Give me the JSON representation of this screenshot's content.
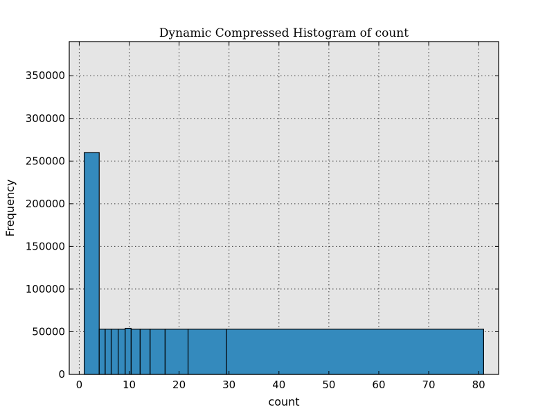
{
  "chart_data": {
    "type": "bar",
    "title": "Dynamic Compressed Histogram of count",
    "xlabel": "count",
    "ylabel": "Frequency",
    "xlim": [
      -2,
      84
    ],
    "ylim": [
      0,
      390000
    ],
    "xticks": [
      0,
      10,
      20,
      30,
      40,
      50,
      60,
      70,
      80
    ],
    "yticks": [
      0,
      50000,
      100000,
      150000,
      200000,
      250000,
      300000,
      350000
    ],
    "grid": true,
    "bins": [
      {
        "x0": 1,
        "x1": 4,
        "value": 260000
      },
      {
        "x0": 4,
        "x1": 5.2,
        "value": 53000
      },
      {
        "x0": 5.2,
        "x1": 6.4,
        "value": 53000
      },
      {
        "x0": 6.4,
        "x1": 7.8,
        "value": 53000
      },
      {
        "x0": 7.8,
        "x1": 9.2,
        "value": 53000
      },
      {
        "x0": 9.2,
        "x1": 10.4,
        "value": 54000
      },
      {
        "x0": 10.4,
        "x1": 12.2,
        "value": 53000
      },
      {
        "x0": 12.2,
        "x1": 14.2,
        "value": 53000
      },
      {
        "x0": 14.2,
        "x1": 17.2,
        "value": 53000
      },
      {
        "x0": 17.2,
        "x1": 21.8,
        "value": 53000
      },
      {
        "x0": 21.8,
        "x1": 29.5,
        "value": 53000
      },
      {
        "x0": 29.5,
        "x1": 81,
        "value": 53000
      }
    ],
    "colors": {
      "bar": "#348abd",
      "plot_background": "#e5e5e5"
    }
  }
}
